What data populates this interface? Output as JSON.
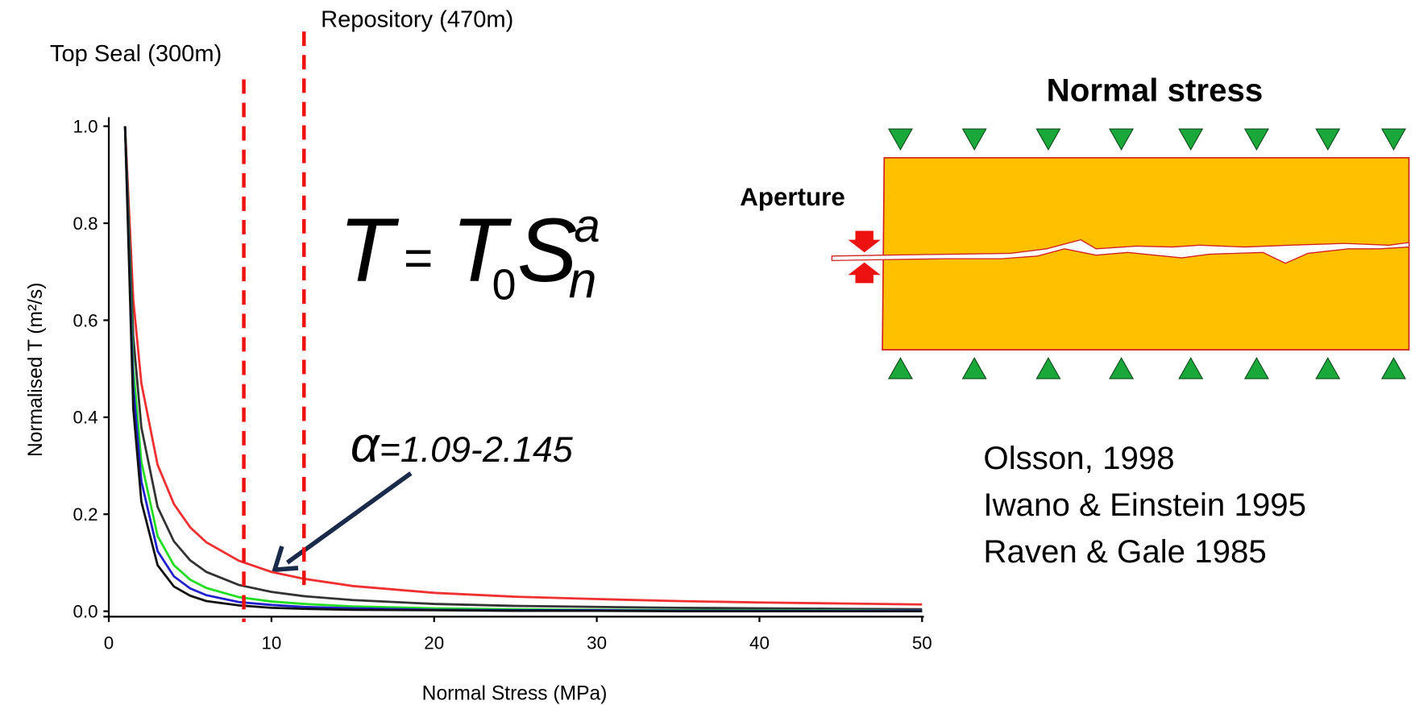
{
  "chart_data": {
    "type": "line",
    "xlabel": "Normal Stress (MPa)",
    "ylabel": "Normalised   T (m²/s)",
    "x": [
      1,
      1.5,
      2,
      3,
      4,
      5,
      6,
      8,
      10,
      12,
      15,
      20,
      25,
      30,
      35,
      40,
      45,
      50
    ],
    "series": [
      {
        "color": "#f03030",
        "values": [
          1,
          0.643,
          0.47,
          0.302,
          0.221,
          0.173,
          0.142,
          0.104,
          0.081,
          0.067,
          0.052,
          0.038,
          0.03,
          0.025,
          0.021,
          0.018,
          0.016,
          0.014
        ]
      },
      {
        "color": "#333333",
        "values": [
          1,
          0.567,
          0.379,
          0.215,
          0.144,
          0.105,
          0.081,
          0.054,
          0.04,
          0.031,
          0.023,
          0.015,
          0.011,
          0.009,
          0.007,
          0.006,
          0.005,
          0.004
        ]
      },
      {
        "color": "#22dd22",
        "values": [
          1,
          0.502,
          0.308,
          0.155,
          0.095,
          0.065,
          0.048,
          0.029,
          0.02,
          0.015,
          0.01,
          0.006,
          0.004,
          0.003,
          0.002,
          0.002,
          0.002,
          0.001
        ]
      },
      {
        "color": "#2020cc",
        "values": [
          1,
          0.463,
          0.268,
          0.124,
          0.072,
          0.047,
          0.033,
          0.019,
          0.013,
          0.009,
          0.006,
          0.003,
          0.002,
          0.002,
          0.001,
          0.001,
          0.001,
          0.001
        ]
      },
      {
        "color": "#111111",
        "values": [
          1,
          0.419,
          0.226,
          0.095,
          0.051,
          0.032,
          0.021,
          0.012,
          0.007,
          0.005,
          0.003,
          0.002,
          0.001,
          0.001,
          0,
          0,
          0,
          0
        ]
      }
    ],
    "xlim": [
      0,
      50
    ],
    "xticks": [
      0,
      10,
      20,
      30,
      40,
      50
    ],
    "ylim": [
      0,
      1
    ],
    "yticks": [
      {
        "value": 0,
        "label": "0.0"
      },
      {
        "value": 0.2,
        "label": "0.2"
      },
      {
        "value": 0.4,
        "label": "0.4"
      },
      {
        "value": 0.6,
        "label": "0.6"
      },
      {
        "value": 0.8,
        "label": "0.8"
      },
      {
        "value": 1,
        "label": "1.0"
      }
    ],
    "grid": false,
    "reference_lines": [
      {
        "x": 8.3,
        "label": "Top Seal (300m)",
        "color": "#ee1111"
      },
      {
        "x": 12,
        "label": "Repository (470m)",
        "color": "#ee1111"
      }
    ],
    "formula": {
      "lhs": "T",
      "rel": "=",
      "base": "T",
      "base_sub": "0",
      "var": "S",
      "var_sub": "n",
      "exp": "a"
    },
    "alpha_label": {
      "symbol": "α",
      "text": "=1.09-2.145"
    }
  },
  "diagram": {
    "title": "Normal stress",
    "aperture": "Aperture"
  },
  "references": [
    "Olsson, 1998",
    "Iwano & Einstein 1995",
    "Raven & Gale 1985"
  ]
}
